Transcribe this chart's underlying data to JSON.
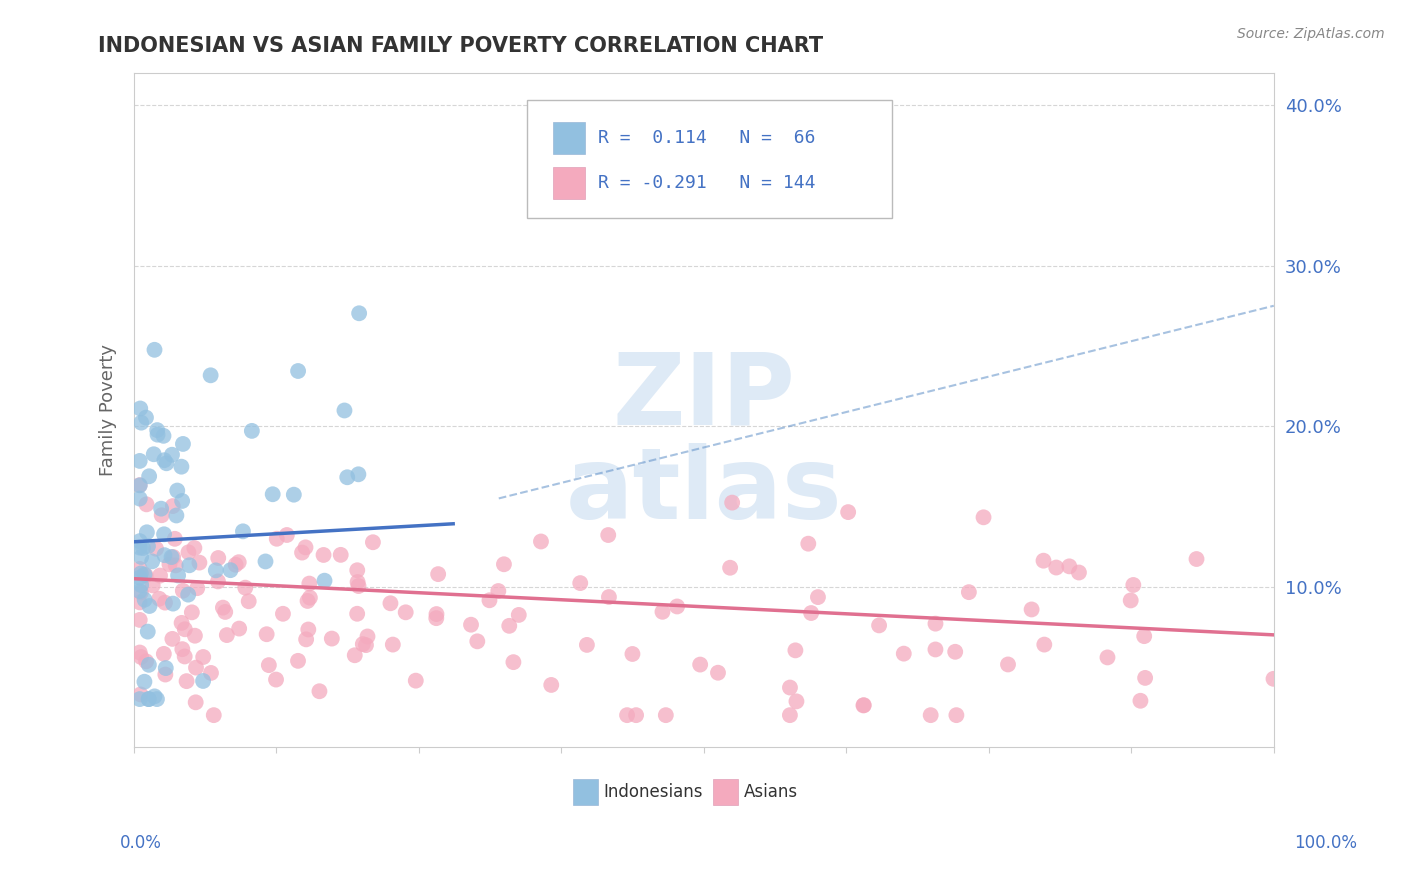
{
  "title": "INDONESIAN VS ASIAN FAMILY POVERTY CORRELATION CHART",
  "source": "Source: ZipAtlas.com",
  "ylabel": "Family Poverty",
  "xlim": [
    0,
    1
  ],
  "ylim": [
    0,
    0.42
  ],
  "blue_color": "#92C0E0",
  "pink_color": "#F4AABE",
  "trend_blue": "#4472C4",
  "trend_pink": "#E07090",
  "dash_color": "#6090C8",
  "watermark_color": "#C8DCF0",
  "title_color": "#333333",
  "source_color": "#888888",
  "ylabel_color": "#666666",
  "tick_label_color": "#4472C4",
  "legend_text_color": "#4472C4",
  "grid_color": "#CCCCCC"
}
